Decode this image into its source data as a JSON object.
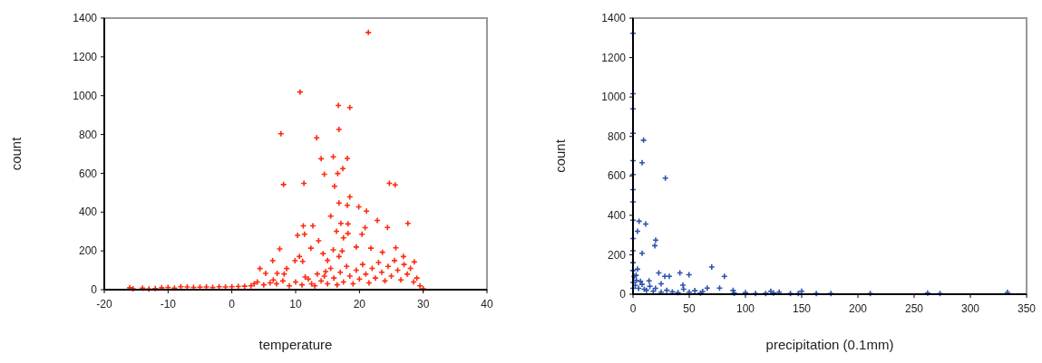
{
  "chart_data": [
    {
      "type": "scatter",
      "xlabel": "temperature",
      "ylabel": "count",
      "xlim": [
        -20,
        40
      ],
      "ylim": [
        0,
        1400
      ],
      "xticks": [
        -20,
        -10,
        0,
        10,
        20,
        30,
        40
      ],
      "yticks": [
        0,
        200,
        400,
        600,
        800,
        1000,
        1200,
        1400
      ],
      "grid": false,
      "marker": "cross",
      "series": [
        {
          "color": "#ff2a10",
          "x": [
            21.4,
            10.7,
            16.7,
            18.5,
            7.7,
            16.8,
            13.3,
            14.0,
            15.9,
            18.1,
            17.4,
            16.6,
            14.5,
            8.1,
            11.3,
            24.7,
            25.6,
            16.1,
            18.5,
            16.8,
            18.1,
            19.9,
            21.1,
            15.5,
            22.8,
            11.2,
            12.7,
            17.1,
            18.2,
            27.6,
            20.9,
            24.4,
            10.3,
            11.4,
            16.4,
            18.2,
            20.4,
            13.6,
            17.5,
            7.5,
            12.4,
            15.9,
            17.3,
            19.5,
            21.8,
            25.7,
            23.6,
            14.3,
            16.8,
            10.6,
            9.9,
            11.1,
            6.4,
            15.0,
            26.9,
            28.6,
            4.4,
            5.3,
            8.6,
            7.1,
            8.2,
            11.5,
            13.4,
            14.7,
            -16,
            -15.5,
            -14,
            -13,
            -12,
            -11,
            -10,
            -9,
            -8,
            -7,
            -6,
            -5,
            -4,
            -3,
            -2,
            -1,
            0,
            1,
            2,
            3,
            3.5,
            4,
            5,
            6,
            6.5,
            7,
            8,
            9,
            10,
            11,
            12,
            12.5,
            13,
            14,
            14.5,
            15,
            15.5,
            16,
            16.5,
            17,
            17.5,
            18,
            18.5,
            19,
            19.5,
            20,
            20.5,
            21,
            21.5,
            22,
            22.5,
            23,
            23.5,
            24,
            24.5,
            25,
            25.5,
            26,
            26.5,
            27,
            27.5,
            28,
            28.5,
            29,
            29.5,
            30
          ],
          "values": [
            1326,
            1019,
            950,
            939,
            804,
            826,
            783,
            675,
            685,
            677,
            624,
            599,
            595,
            542,
            548,
            548,
            540,
            533,
            478,
            447,
            435,
            427,
            405,
            379,
            357,
            329,
            329,
            342,
            339,
            342,
            320,
            321,
            280,
            286,
            301,
            290,
            286,
            252,
            267,
            210,
            214,
            205,
            199,
            220,
            214,
            216,
            193,
            186,
            171,
            171,
            149,
            146,
            149,
            151,
            171,
            143,
            109,
            84,
            109,
            84,
            81,
            65,
            81,
            93,
            10,
            5,
            8,
            3,
            6,
            10,
            12,
            8,
            15,
            14,
            12,
            13,
            14,
            12,
            15,
            14,
            15,
            16,
            18,
            20,
            30,
            40,
            25,
            35,
            50,
            30,
            45,
            20,
            40,
            25,
            55,
            30,
            20,
            45,
            70,
            30,
            110,
            60,
            25,
            90,
            40,
            120,
            70,
            30,
            100,
            55,
            130,
            80,
            35,
            110,
            60,
            140,
            90,
            45,
            120,
            70,
            150,
            100,
            50,
            130,
            80,
            110,
            40,
            60,
            20,
            5
          ]
        }
      ]
    },
    {
      "type": "scatter",
      "xlabel": "precipitation (0.1mm)",
      "ylabel": "count",
      "xlim": [
        0,
        350
      ],
      "ylim": [
        0,
        1400
      ],
      "xticks": [
        0,
        50,
        100,
        150,
        200,
        250,
        300,
        350
      ],
      "yticks": [
        0,
        200,
        400,
        600,
        800,
        1000,
        1200,
        1400
      ],
      "grid": false,
      "marker": "cross",
      "series": [
        {
          "color": "#2f55b0",
          "x": [
            0,
            0,
            0,
            0,
            9.4,
            8.1,
            28.8,
            0,
            0,
            0,
            0,
            0,
            5.4,
            11.3,
            4.0,
            20.2,
            19.4,
            8.1,
            0,
            0,
            70,
            41.7,
            49.8,
            22.9,
            28.3,
            32.3,
            81.3,
            14.3,
            25,
            4,
            2.7,
            6.7,
            44.4,
            66,
            77,
            89,
            122.5,
            150,
            163,
            176,
            211,
            262,
            273,
            333,
            109,
            147,
            0,
            0,
            0,
            0,
            1,
            2,
            3,
            5,
            8,
            10,
            12,
            15,
            18,
            20,
            25,
            30,
            35,
            40,
            45,
            50,
            55,
            60,
            62,
            90,
            100,
            118,
            125,
            130,
            140
          ],
          "values": [
            1323,
            1017,
            940,
            816,
            781,
            667,
            589,
            677,
            607,
            530,
            468,
            375,
            370,
            356,
            319,
            274,
            246,
            208,
            282,
            220,
            138,
            108,
            99,
            108,
            91,
            91,
            91,
            68,
            53,
            127,
            96,
            65,
            46,
            31,
            31,
            19,
            15,
            15,
            3,
            3,
            3,
            6,
            3,
            9,
            3,
            3,
            160,
            120,
            60,
            30,
            90,
            45,
            70,
            30,
            50,
            25,
            20,
            40,
            15,
            30,
            10,
            20,
            12,
            8,
            25,
            10,
            18,
            6,
            14,
            5,
            8,
            4,
            6,
            10,
            3
          ]
        }
      ]
    }
  ]
}
